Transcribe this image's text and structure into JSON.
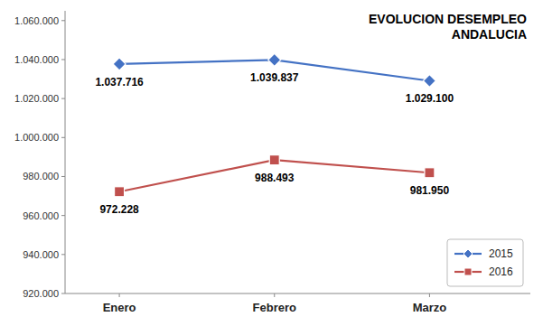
{
  "chart_data": {
    "type": "line",
    "title": "EVOLUCION DESEMPLEO",
    "subtitle": "ANDALUCIA",
    "categories": [
      "Enero",
      "Febrero",
      "Marzo"
    ],
    "series": [
      {
        "name": "2015",
        "color": "#4472C4",
        "marker": "diamond",
        "values": [
          1037716,
          1039837,
          1029100
        ],
        "value_labels": [
          "1.037.716",
          "1.039.837",
          "1.029.100"
        ]
      },
      {
        "name": "2016",
        "color": "#C0504D",
        "marker": "square",
        "values": [
          972228,
          988493,
          981950
        ],
        "value_labels": [
          "972.228",
          "988.493",
          "981.950"
        ]
      }
    ],
    "ylim": [
      920000,
      1065000
    ],
    "yticks": [
      {
        "value": 920000,
        "label": "920.000"
      },
      {
        "value": 940000,
        "label": "940.000"
      },
      {
        "value": 960000,
        "label": "960.000"
      },
      {
        "value": 980000,
        "label": "980.000"
      },
      {
        "value": 1000000,
        "label": "1.000.000"
      },
      {
        "value": 1020000,
        "label": "1.020.000"
      },
      {
        "value": 1040000,
        "label": "1.040.000"
      },
      {
        "value": 1060000,
        "label": "1.060.000"
      }
    ],
    "data_labels": true,
    "grid": false,
    "legend": "lower right"
  }
}
